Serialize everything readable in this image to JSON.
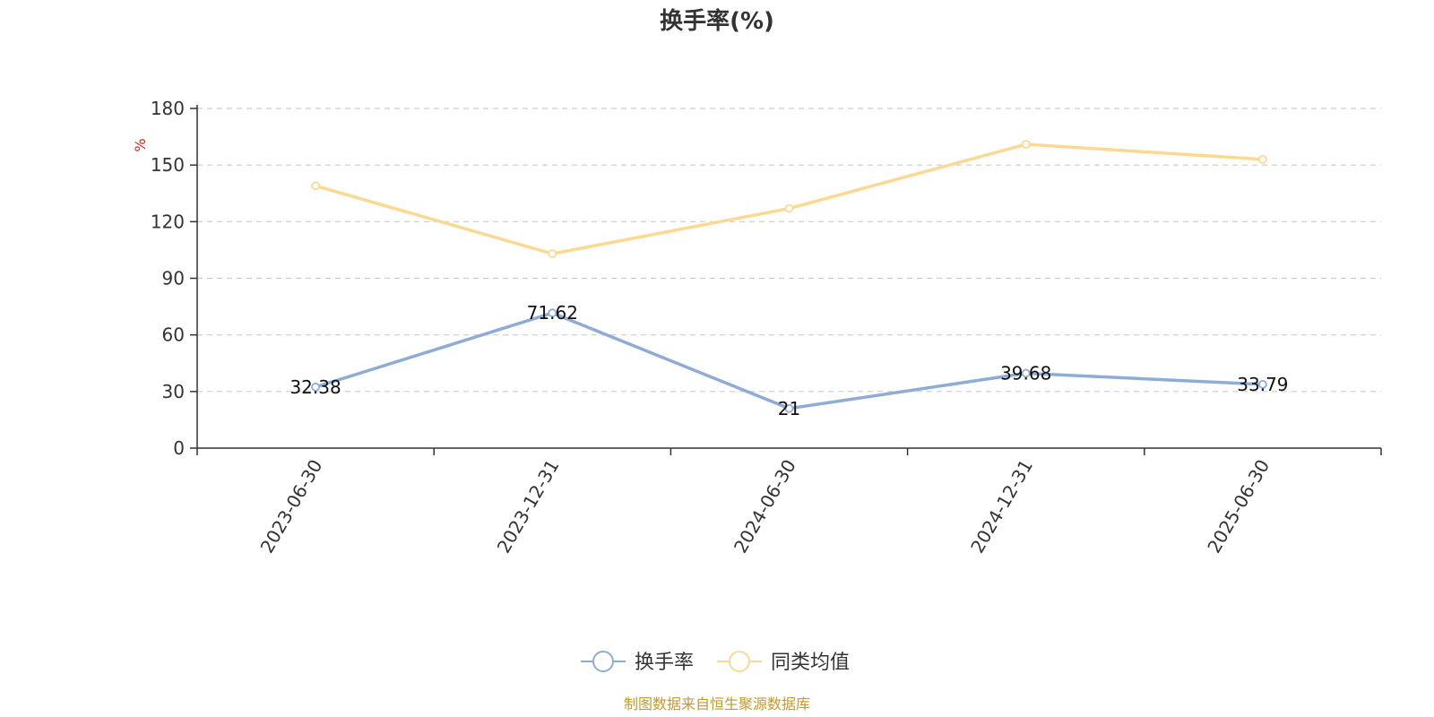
{
  "chart_data": {
    "type": "line",
    "title": "换手率(%)",
    "ylabel": "%",
    "xlabel": "",
    "categories": [
      "2023-06-30",
      "2023-12-31",
      "2024-06-30",
      "2024-12-31",
      "2025-06-30"
    ],
    "ylim": [
      0,
      180
    ],
    "yticks": [
      0,
      30,
      60,
      90,
      120,
      150,
      180
    ],
    "grid": true,
    "legend_position": "bottom-center",
    "series": [
      {
        "name": "换手率",
        "values": [
          32.38,
          71.62,
          21,
          39.68,
          33.79
        ],
        "data_labels": [
          "32.38",
          "71.62",
          "21",
          "39.68",
          "33.79"
        ],
        "color": "#8eacd6"
      },
      {
        "name": "同类均值",
        "values": [
          139,
          103,
          127,
          161,
          153
        ],
        "color": "#fcd993"
      }
    ],
    "source": "制图数据来自恒生聚源数据库"
  }
}
